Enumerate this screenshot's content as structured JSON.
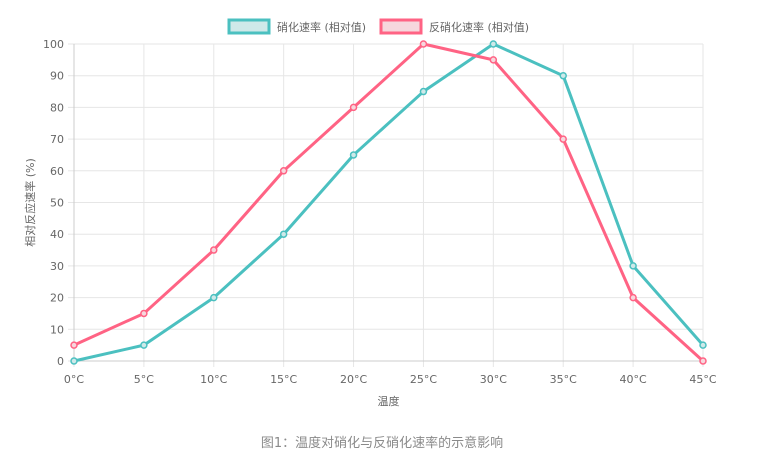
{
  "chart_data": {
    "type": "line",
    "categories": [
      "0°C",
      "5°C",
      "10°C",
      "15°C",
      "20°C",
      "25°C",
      "30°C",
      "35°C",
      "40°C",
      "45°C"
    ],
    "series": [
      {
        "name": "硝化速率 (相对值)",
        "color": "#4bc0c0",
        "fill": "#cfe9e9",
        "values": [
          0,
          5,
          20,
          40,
          65,
          85,
          100,
          90,
          30,
          5
        ]
      },
      {
        "name": "反硝化速率 (相对值)",
        "color": "#ff6384",
        "fill": "#f6d7dd",
        "values": [
          5,
          15,
          35,
          60,
          80,
          100,
          95,
          70,
          20,
          0
        ]
      }
    ],
    "xlabel": "温度",
    "ylabel": "相对反应速率 (%)",
    "ylim": [
      0,
      100
    ],
    "yticks": [
      0,
      10,
      20,
      30,
      40,
      50,
      60,
      70,
      80,
      90,
      100
    ],
    "grid": true,
    "legend": "top-center"
  },
  "caption": "图1：温度对硝化与反硝化速率的示意影响"
}
